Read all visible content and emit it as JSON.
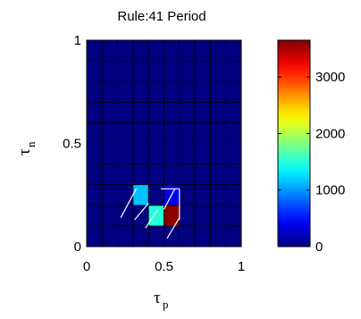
{
  "chart_data": {
    "type": "heatmap",
    "title": "Rule:41 Period",
    "xlabel": "τ",
    "xlabel_sub": "p",
    "ylabel": "τ",
    "ylabel_sub": "n",
    "xlim": [
      0,
      1
    ],
    "ylim": [
      0,
      1
    ],
    "grid_size": [
      10,
      10
    ],
    "x_ticks": [
      {
        "value": 0,
        "label": "0"
      },
      {
        "value": 0.5,
        "label": "0.5"
      },
      {
        "value": 1,
        "label": "1"
      }
    ],
    "y_ticks": [
      {
        "value": 0,
        "label": "0"
      },
      {
        "value": 0.5,
        "label": "0.5"
      },
      {
        "value": 1,
        "label": "1"
      }
    ],
    "background_value": 0,
    "cells": [
      {
        "col": 3,
        "row": 2,
        "value": 1150
      },
      {
        "col": 5,
        "row": 2,
        "value": 380
      },
      {
        "col": 4,
        "row": 1,
        "value": 1500
      },
      {
        "col": 5,
        "row": 1,
        "value": 3600
      }
    ],
    "colorbar": {
      "min": 0,
      "max": 3650,
      "colormap": "jet",
      "ticks": [
        {
          "value": 0,
          "label": "0"
        },
        {
          "value": 1000,
          "label": "1000"
        },
        {
          "value": 2000,
          "label": "2000"
        },
        {
          "value": 3000,
          "label": "3000"
        }
      ]
    }
  }
}
